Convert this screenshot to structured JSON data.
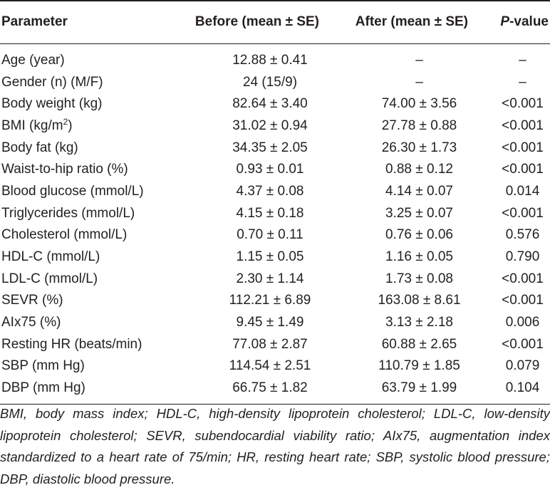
{
  "table": {
    "headers": {
      "parameter": "Parameter",
      "before": "Before (mean ± SE)",
      "after": "After (mean ± SE)",
      "p_value_italic": "P",
      "p_value_rest": "-value"
    },
    "rows": [
      {
        "parameter": "Age (year)",
        "before": "12.88 ± 0.41",
        "after": "–",
        "p": "–"
      },
      {
        "parameter": "Gender (n) (M/F)",
        "before": "24 (15/9)",
        "after": "–",
        "p": "–"
      },
      {
        "parameter": "Body weight (kg)",
        "before": "82.64 ± 3.40",
        "after": "74.00 ± 3.56",
        "p": "<0.001"
      },
      {
        "parameter_base": "BMI (kg/m",
        "parameter_sup": "2",
        "parameter_end": ")",
        "before": "31.02 ± 0.94",
        "after": "27.78 ± 0.88",
        "p": "<0.001"
      },
      {
        "parameter": "Body fat (kg)",
        "before": "34.35 ± 2.05",
        "after": "26.30 ± 1.73",
        "p": "<0.001"
      },
      {
        "parameter": "Waist-to-hip ratio (%)",
        "before": "0.93 ± 0.01",
        "after": "0.88 ± 0.12",
        "p": "<0.001"
      },
      {
        "parameter": "Blood glucose (mmol/L)",
        "before": "4.37 ± 0.08",
        "after": "4.14 ± 0.07",
        "p": "0.014"
      },
      {
        "parameter": "Triglycerides (mmol/L)",
        "before": "4.15 ± 0.18",
        "after": "3.25 ± 0.07",
        "p": "<0.001"
      },
      {
        "parameter": "Cholesterol (mmol/L)",
        "before": "0.70 ± 0.11",
        "after": "0.76 ± 0.06",
        "p": "0.576"
      },
      {
        "parameter": "HDL-C (mmol/L)",
        "before": "1.15 ± 0.05",
        "after": "1.16 ± 0.05",
        "p": "0.790"
      },
      {
        "parameter": "LDL-C (mmol/L)",
        "before": "2.30 ± 1.14",
        "after": "1.73 ± 0.08",
        "p": "<0.001"
      },
      {
        "parameter": "SEVR (%)",
        "before": "112.21 ± 6.89",
        "after": "163.08 ± 8.61",
        "p": "<0.001"
      },
      {
        "parameter": "AIx75 (%)",
        "before": "9.45 ± 1.49",
        "after": "3.13 ± 2.18",
        "p": "0.006"
      },
      {
        "parameter": "Resting HR (beats/min)",
        "before": "77.08 ± 2.87",
        "after": "60.88 ± 2.65",
        "p": "<0.001"
      },
      {
        "parameter": "SBP (mm Hg)",
        "before": "114.54 ± 2.51",
        "after": "110.79 ± 1.85",
        "p": "0.079"
      },
      {
        "parameter": "DBP (mm Hg)",
        "before": "66.75 ± 1.82",
        "after": "63.79 ± 1.99",
        "p": "0.104"
      }
    ]
  },
  "footnote": "BMI, body mass index; HDL-C, high-density lipoprotein cholesterol; LDL-C, low-density lipoprotein cholesterol; SEVR, subendocardial viability ratio; AIx75, augmentation index standardized to a heart rate of 75/min; HR, resting heart rate; SBP, systolic blood pressure; DBP, diastolic blood pressure."
}
